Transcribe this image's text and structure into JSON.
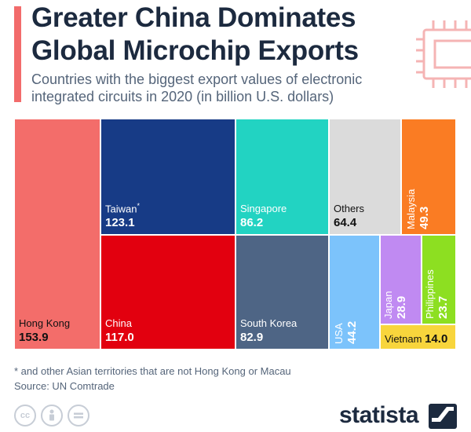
{
  "header": {
    "title_line1": "Greater China Dominates",
    "title_line2": "Global Microchip Exports",
    "subtitle_line1": "Countries with the biggest export values of electronic",
    "subtitle_line2": "integrated circuits in 2020 (in billion U.S. dollars)"
  },
  "chart_data": {
    "type": "treemap",
    "title": "Greater China Dominates Global Microchip Exports",
    "subtitle": "Countries with the biggest export values of electronic integrated circuits in 2020 (in billion U.S. dollars)",
    "unit": "billion U.S. dollars",
    "year": 2020,
    "items": [
      {
        "label": "Hong Kong",
        "value": 153.9,
        "display": "153.9",
        "color": "#f36d6a",
        "text_color": "#111111"
      },
      {
        "label": "Taiwan",
        "marker": "*",
        "value": 123.1,
        "display": "123.1",
        "color": "#173b86",
        "text_color": "#ffffff"
      },
      {
        "label": "China",
        "value": 117.0,
        "display": "117.0",
        "color": "#e2000f",
        "text_color": "#ffffff"
      },
      {
        "label": "Singapore",
        "value": 86.2,
        "display": "86.2",
        "color": "#22d3c2",
        "text_color": "#ffffff"
      },
      {
        "label": "South Korea",
        "value": 82.9,
        "display": "82.9",
        "color": "#4e6585",
        "text_color": "#ffffff"
      },
      {
        "label": "Others",
        "value": 64.4,
        "display": "64.4",
        "color": "#dbdbdb",
        "text_color": "#111111"
      },
      {
        "label": "Malaysia",
        "value": 49.3,
        "display": "49.3",
        "color": "#fa7c23",
        "text_color": "#ffffff"
      },
      {
        "label": "USA",
        "value": 44.2,
        "display": "44.2",
        "color": "#7cc3fb",
        "text_color": "#ffffff"
      },
      {
        "label": "Japan",
        "value": 28.9,
        "display": "28.9",
        "color": "#c08af2",
        "text_color": "#ffffff"
      },
      {
        "label": "Philippines",
        "value": 23.7,
        "display": "23.7",
        "color": "#8ddf21",
        "text_color": "#ffffff"
      },
      {
        "label": "Vietnam",
        "value": 14.0,
        "display": "14.0",
        "color": "#f8d53c",
        "text_color": "#111111"
      }
    ]
  },
  "footer": {
    "footnote": "* and other Asian territories that are not Hong Kong or Macau",
    "source": "Source: UN Comtrade",
    "cc_icons": [
      "creative-commons-icon",
      "attribution-icon",
      "no-derivatives-icon"
    ],
    "brand": "statista"
  }
}
